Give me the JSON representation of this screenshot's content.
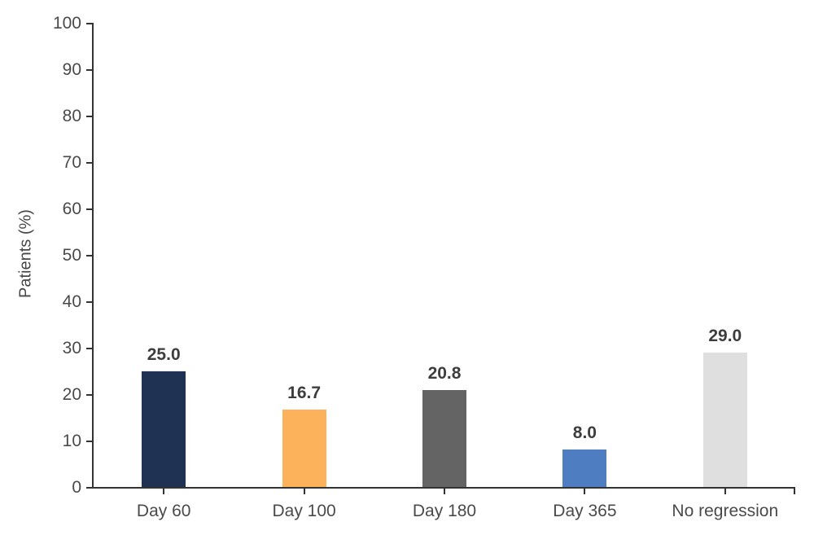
{
  "chart_data": {
    "type": "bar",
    "categories": [
      "Day 60",
      "Day 100",
      "Day 180",
      "Day 365",
      "No regression"
    ],
    "values": [
      25.0,
      16.7,
      20.8,
      8.0,
      29.0
    ],
    "value_labels": [
      "25.0",
      "16.7",
      "20.8",
      "8.0",
      "29.0"
    ],
    "bar_colors": [
      "#1f3254",
      "#fbb25a",
      "#646464",
      "#4e7dc1",
      "#dfdfdf"
    ],
    "title": "",
    "xlabel": "",
    "ylabel": "Patients (%)",
    "ylim": [
      0,
      100
    ],
    "ytick_step": 10,
    "ytick_labels": [
      "0",
      "10",
      "20",
      "30",
      "40",
      "50",
      "60",
      "70",
      "80",
      "90",
      "100"
    ],
    "grid": false,
    "legend": false,
    "axis_color": "#333333",
    "tick_label_color": "#4a4a4a",
    "value_label_color": "#3d3d3d",
    "background_color": "#ffffff"
  }
}
